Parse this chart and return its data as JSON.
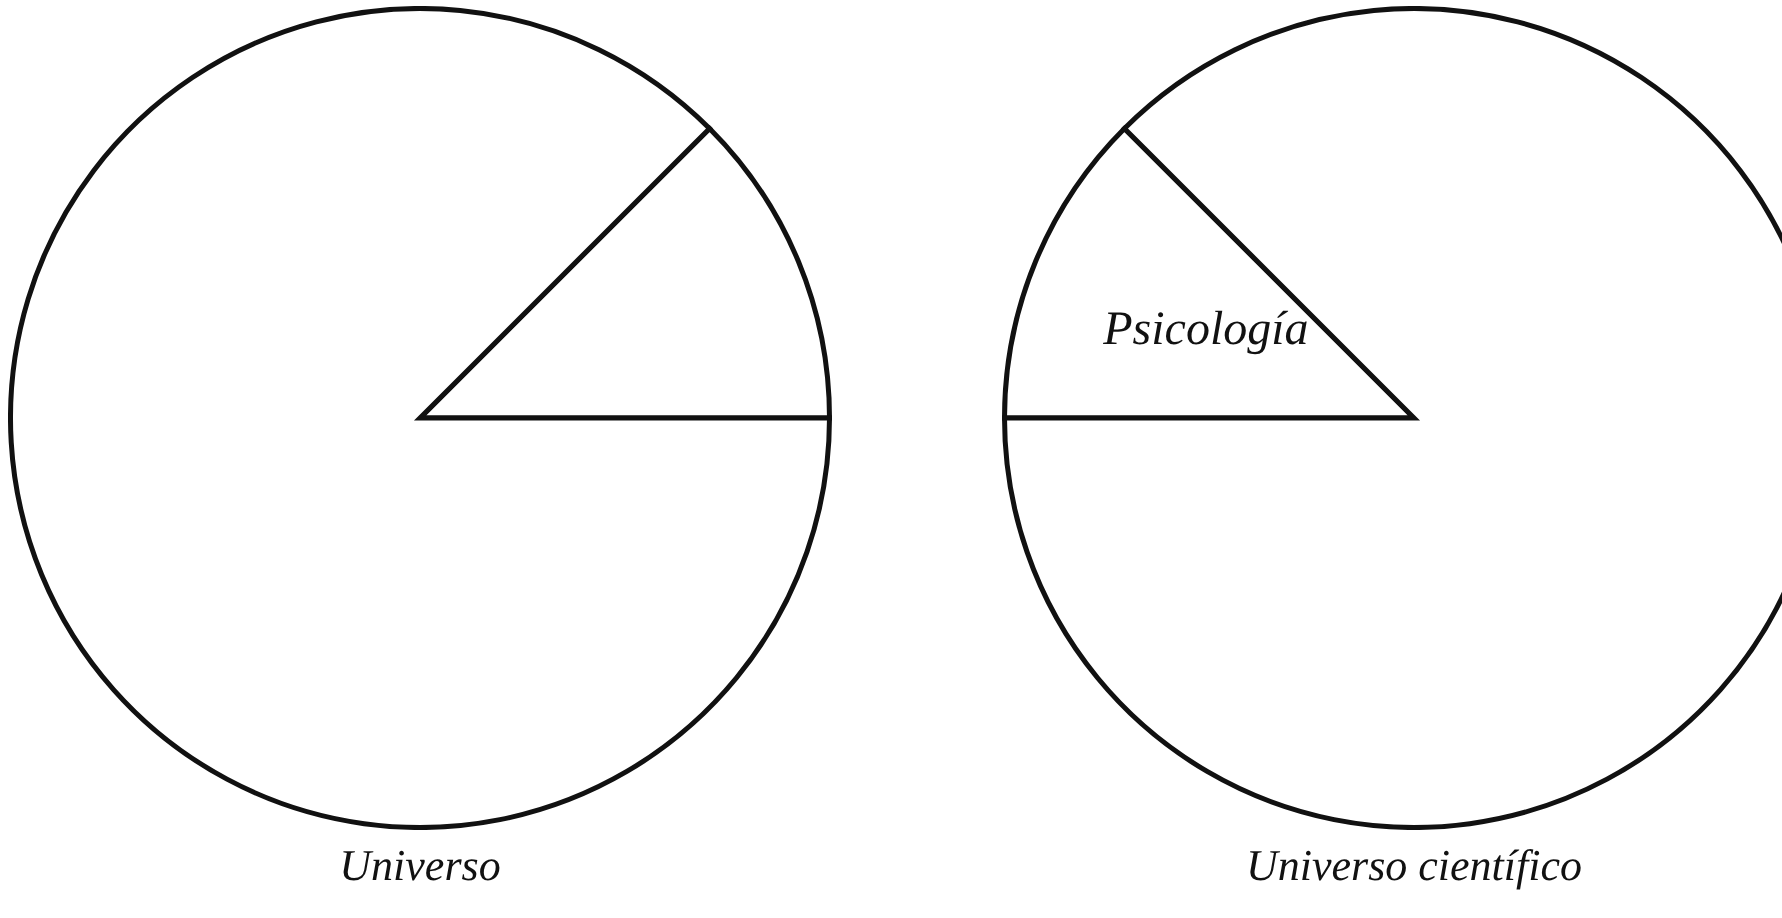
{
  "chart_data": [
    {
      "type": "pie",
      "title": "Universo",
      "categories": [
        null,
        null
      ],
      "values": [
        12.5,
        87.5
      ],
      "colors": [
        "#ffffff",
        "#ffffff"
      ]
    },
    {
      "type": "pie",
      "title": "Universo científico",
      "categories": [
        "Psicología",
        null
      ],
      "values": [
        12.5,
        87.5
      ],
      "colors": [
        "#ffffff",
        "#ffffff"
      ]
    }
  ]
}
